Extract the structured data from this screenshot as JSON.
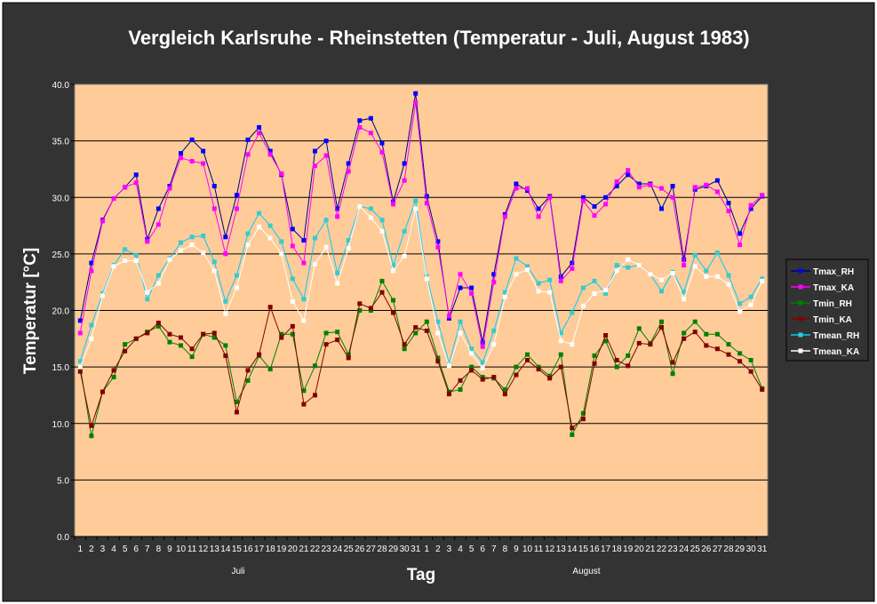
{
  "chart_data": {
    "type": "line",
    "title": "Vergleich Karlsruhe - Rheinstetten (Temperatur - Juli, August 1983)",
    "xlabel": "Tag",
    "ylabel": "Temperatur [°C]",
    "ylim": [
      0,
      40
    ],
    "yticks": [
      "0.0",
      "5.0",
      "10.0",
      "15.0",
      "20.0",
      "25.0",
      "30.0",
      "35.0",
      "40.0"
    ],
    "grid": true,
    "legend_position": "right",
    "months": [
      "Juli",
      "August"
    ],
    "x": [
      "1",
      "2",
      "3",
      "4",
      "5",
      "6",
      "7",
      "8",
      "9",
      "10",
      "11",
      "12",
      "13",
      "14",
      "15",
      "16",
      "17",
      "18",
      "19",
      "20",
      "21",
      "22",
      "23",
      "24",
      "25",
      "26",
      "27",
      "28",
      "29",
      "30",
      "31",
      "1",
      "2",
      "3",
      "4",
      "5",
      "6",
      "7",
      "8",
      "9",
      "10",
      "11",
      "12",
      "13",
      "14",
      "15",
      "16",
      "17",
      "18",
      "19",
      "20",
      "21",
      "22",
      "23",
      "24",
      "25",
      "26",
      "27",
      "28",
      "29",
      "30",
      "31"
    ],
    "series": [
      {
        "name": "Tmax_RH",
        "line": "#000080",
        "marker": "#0000FF",
        "values": [
          19.1,
          24.2,
          28,
          29.9,
          30.9,
          32,
          26.3,
          29,
          31,
          33.9,
          35.1,
          34.1,
          31,
          26.5,
          30.2,
          35.1,
          36.2,
          34.1,
          32,
          27.2,
          26.2,
          34.1,
          35,
          29,
          33,
          36.8,
          37,
          34.8,
          29.6,
          33,
          39.2,
          30.1,
          26.1,
          19.3,
          22,
          22,
          17.2,
          23.2,
          28.5,
          31.2,
          30.6,
          29,
          30.1,
          23,
          24.2,
          30,
          29.2,
          30,
          31,
          32,
          31.2,
          31.2,
          29,
          31,
          24.5,
          30.7,
          31,
          31.5,
          29.5,
          26.8,
          29,
          30.1
        ]
      },
      {
        "name": "Tmax_KA",
        "line": "#FF00FF",
        "marker": "#FF00FF",
        "values": [
          18,
          23.5,
          27.9,
          29.9,
          30.9,
          31.3,
          26.1,
          27.6,
          30.8,
          33.5,
          33.2,
          33,
          29,
          25,
          29,
          33.8,
          35.7,
          33.8,
          32.1,
          25.7,
          24.2,
          32.8,
          33.7,
          28.3,
          32.3,
          36.2,
          35.7,
          34,
          29.4,
          31.5,
          38.4,
          29.5,
          25.6,
          19.5,
          23.2,
          21.5,
          16.8,
          22.5,
          28.3,
          30.8,
          30.8,
          28.3,
          30,
          22.6,
          23.7,
          29.7,
          28.4,
          29.4,
          31.4,
          32.4,
          30.9,
          31.1,
          30.8,
          30,
          24,
          30.9,
          31.1,
          30.5,
          28.8,
          25.8,
          29.3,
          30.2
        ]
      },
      {
        "name": "Tmin_RH",
        "line": "#008000",
        "marker": "#008000",
        "values": [
          15,
          8.9,
          12.8,
          14.1,
          17,
          17.5,
          18.1,
          18.6,
          17.2,
          16.9,
          15.9,
          17.9,
          17.6,
          16.9,
          11.9,
          13.8,
          16,
          14.8,
          17.9,
          17.9,
          12.9,
          15.1,
          18,
          18.1,
          16.1,
          20,
          20,
          22.6,
          20.9,
          16.6,
          18,
          19,
          15.8,
          12.8,
          13,
          15,
          14.1,
          14,
          13,
          15,
          16.1,
          15,
          14.2,
          16.1,
          9,
          10.9,
          16,
          17.3,
          15,
          16,
          18.4,
          17.1,
          19,
          14.4,
          18,
          19,
          17.9,
          17.9,
          17,
          16.2,
          15.6,
          13.1
        ]
      },
      {
        "name": "Tmin_KA",
        "line": "#800000",
        "marker": "#800000",
        "values": [
          14.6,
          9.8,
          12.8,
          14.7,
          16.4,
          17.5,
          18,
          18.9,
          17.9,
          17.6,
          16.6,
          17.9,
          18,
          16,
          11,
          14.7,
          16.1,
          20.3,
          17.6,
          18.6,
          11.7,
          12.5,
          17,
          17.4,
          15.8,
          20.6,
          20.2,
          21.6,
          19.8,
          17,
          18.5,
          18.2,
          15.5,
          12.6,
          13.8,
          14.7,
          13.9,
          14.1,
          12.6,
          14.3,
          15.6,
          14.8,
          14,
          15,
          9.6,
          10.4,
          15.3,
          17.8,
          15.6,
          15.1,
          17.1,
          17,
          18.5,
          15.4,
          17.5,
          18.1,
          16.9,
          16.6,
          16.1,
          15.5,
          14.6,
          13
        ]
      },
      {
        "name": "Tmean_RH",
        "line": "#00CCFF",
        "marker": "#33CCCC",
        "values": [
          15.5,
          18.7,
          21.5,
          24,
          25.4,
          24.9,
          21,
          23.1,
          24.6,
          26,
          26.5,
          26.6,
          24.3,
          20.8,
          23.1,
          26.8,
          28.6,
          27.5,
          26.1,
          22.8,
          21,
          26.4,
          28,
          23.3,
          26.2,
          29.2,
          29,
          28,
          24,
          27,
          29.7,
          23,
          19,
          15.3,
          19,
          16.6,
          15.4,
          18.2,
          21.6,
          24.6,
          23.9,
          22.4,
          22.7,
          18,
          19.8,
          22,
          22.6,
          21.5,
          24,
          23.8,
          24,
          23.2,
          21.7,
          23.4,
          21.6,
          24.9,
          23.5,
          25.1,
          23.1,
          20.6,
          21.2,
          22.8
        ]
      },
      {
        "name": "Tmean_KA",
        "line": "#FFFFFF",
        "marker": "#FFFFFF",
        "values": [
          15,
          17.5,
          21.3,
          23.9,
          24.4,
          24.4,
          21.6,
          22.4,
          24.5,
          25.3,
          25.8,
          25.1,
          23.5,
          19.7,
          22,
          25.8,
          27.4,
          26.4,
          25,
          20.8,
          19.1,
          24.1,
          25.6,
          22.4,
          25.5,
          29.2,
          28.2,
          27,
          23.5,
          24.8,
          29,
          22.8,
          18,
          15.1,
          18,
          16.2,
          14.9,
          17,
          21.2,
          23.2,
          23.6,
          21.7,
          21.6,
          17.3,
          17,
          20.4,
          21.5,
          21.8,
          23.5,
          24.5,
          24,
          23.2,
          22.7,
          23.3,
          21,
          23.9,
          23,
          23,
          22.3,
          19.9,
          20.5,
          22.6
        ]
      }
    ]
  },
  "colors": {
    "background": "#333333",
    "plot": "#FFCC99"
  }
}
